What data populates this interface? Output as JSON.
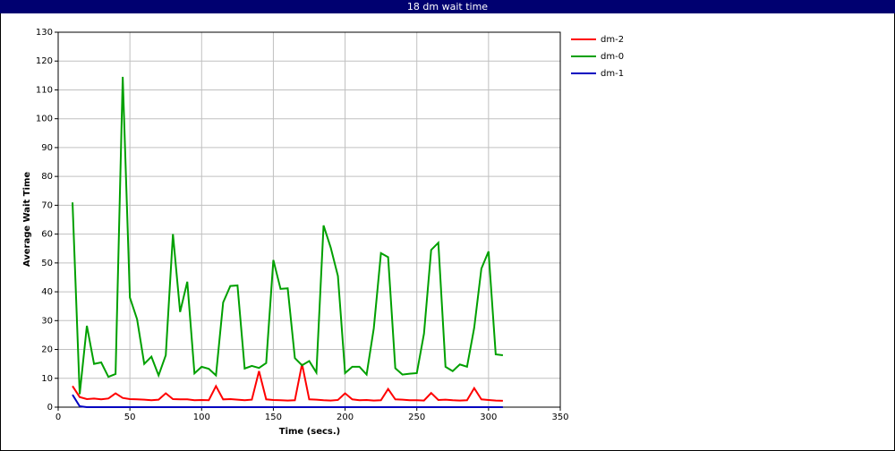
{
  "chart_data": {
    "type": "line",
    "title": "18 dm wait time",
    "xlabel": "Time (secs.)",
    "ylabel": "Average Wait Time",
    "x": [
      10,
      15,
      20,
      25,
      30,
      35,
      40,
      45,
      50,
      55,
      60,
      65,
      70,
      75,
      80,
      85,
      90,
      95,
      100,
      105,
      110,
      115,
      120,
      125,
      130,
      135,
      140,
      145,
      150,
      155,
      160,
      165,
      170,
      175,
      180,
      185,
      190,
      195,
      200,
      205,
      210,
      215,
      220,
      225,
      230,
      235,
      240,
      245,
      250,
      255,
      260,
      265,
      270,
      275,
      280,
      285,
      290,
      295,
      300,
      305,
      310
    ],
    "series": [
      {
        "name": "dm-2",
        "color": "#ff0000",
        "values": [
          7.3,
          3.5,
          2.8,
          3,
          2.7,
          3,
          4.8,
          3.2,
          2.8,
          2.7,
          2.6,
          2.4,
          2.6,
          4.8,
          2.8,
          2.7,
          2.7,
          2.4,
          2.5,
          2.4,
          7.3,
          2.7,
          2.8,
          2.6,
          2.4,
          2.6,
          12.5,
          2.7,
          2.5,
          2.4,
          2.3,
          2.4,
          15,
          2.7,
          2.6,
          2.4,
          2.3,
          2.5,
          4.8,
          2.7,
          2.4,
          2.5,
          2.3,
          2.4,
          6.3,
          2.7,
          2.6,
          2.4,
          2.4,
          2.3,
          4.9,
          2.5,
          2.6,
          2.4,
          2.3,
          2.4,
          6.6,
          2.7,
          2.5,
          2.3,
          2.2
        ]
      },
      {
        "name": "dm-0",
        "color": "#00a000",
        "values": [
          71,
          4.5,
          28.2,
          15,
          15.5,
          10.5,
          11.5,
          114.5,
          38,
          30.5,
          15,
          17.5,
          11,
          18,
          60,
          33,
          43.5,
          11.7,
          14,
          13.3,
          11,
          36.3,
          42,
          42.2,
          13.4,
          14.3,
          13.6,
          15.3,
          51,
          41,
          41.2,
          17,
          14.5,
          16,
          12,
          63,
          55.3,
          45.5,
          11.8,
          14,
          14,
          11.3,
          27.3,
          53.4,
          52,
          13.5,
          11.3,
          11.6,
          11.8,
          25.5,
          54.5,
          57,
          14,
          12.5,
          14.8,
          14,
          27.5,
          48,
          54,
          18.3,
          18
        ]
      },
      {
        "name": "dm-1",
        "color": "#0000c0",
        "values": [
          4.3,
          0.3,
          0,
          0,
          0,
          0,
          0,
          0,
          0,
          0,
          0,
          0,
          0,
          0,
          0,
          0,
          0,
          0,
          0,
          0,
          0,
          0,
          0,
          0,
          0,
          0,
          0,
          0,
          0,
          0,
          0,
          0,
          0,
          0,
          0,
          0,
          0,
          0,
          0,
          0,
          0,
          0,
          0,
          0,
          0,
          0,
          0,
          0,
          0,
          0,
          0,
          0,
          0,
          0,
          0,
          0,
          0,
          0,
          0,
          0,
          0
        ]
      }
    ],
    "xlim": [
      0,
      350
    ],
    "xticks": [
      0,
      50,
      100,
      150,
      200,
      250,
      300,
      350
    ],
    "ylim": [
      0,
      130
    ],
    "yticks": [
      0,
      10,
      20,
      30,
      40,
      50,
      60,
      70,
      80,
      90,
      100,
      110,
      120,
      130
    ],
    "grid": true,
    "legend": "right"
  }
}
